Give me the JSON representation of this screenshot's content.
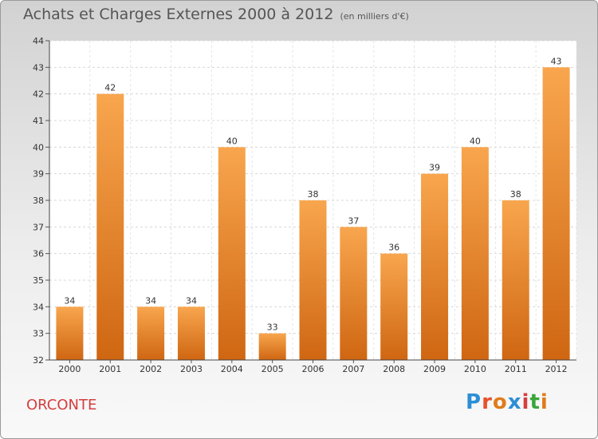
{
  "header": {
    "title": "Achats et Charges Externes 2000 à 2012",
    "subtitle": "(en milliers d'€)"
  },
  "footer": {
    "commune": "ORCONTE",
    "logo_text": "Proxiti"
  },
  "colors": {
    "bar_light": "#f8a64e",
    "bar_dark": "#cf6612",
    "commune": "#d43f3f",
    "logo": [
      "#2c8fd6",
      "#e8502c",
      "#e07c1a",
      "#2c8fd6",
      "#d43f3f",
      "#3aa63a",
      "#e07c1a"
    ]
  },
  "chart_data": {
    "type": "bar",
    "categories": [
      "2000",
      "2001",
      "2002",
      "2003",
      "2004",
      "2005",
      "2006",
      "2007",
      "2008",
      "2009",
      "2010",
      "2011",
      "2012"
    ],
    "values": [
      34,
      42,
      34,
      34,
      40,
      33,
      38,
      37,
      36,
      39,
      40,
      38,
      43
    ],
    "ylim": [
      32,
      44
    ],
    "yticks": [
      32,
      33,
      34,
      35,
      36,
      37,
      38,
      39,
      40,
      41,
      42,
      43,
      44
    ],
    "grid": true
  }
}
